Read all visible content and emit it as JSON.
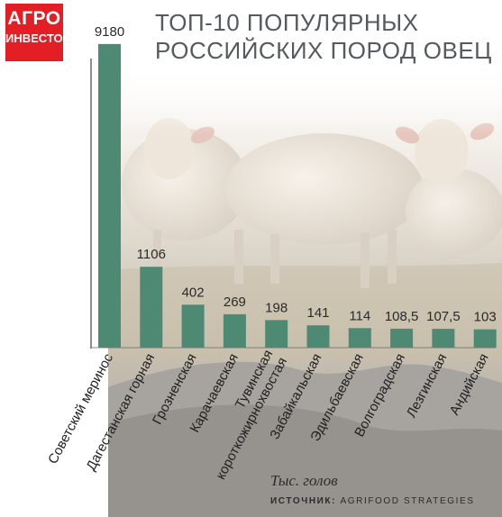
{
  "logo": {
    "line1": "АГРО",
    "line2": "ИНВЕСТОР"
  },
  "chart_data": {
    "type": "bar",
    "title": "ТОП-10 ПОПУЛЯРНЫХ РОССИЙСКИХ ПОРОД ОВЕЦ",
    "title_lines": [
      "ТОП-10 ПОПУЛЯРНЫХ",
      "РОССИЙСКИХ ПОРОД ОВЕЦ"
    ],
    "unit": "Тыс. голов",
    "categories": [
      "Советский меринос",
      "Дагестанская горная",
      "Грозненская",
      "Карачаевская",
      "Тувинская короткожирнохвостая",
      "Забайкальская",
      "Эдильбаевская",
      "Волгоградская",
      "Лезгинская",
      "Андийская"
    ],
    "category_lines": [
      [
        "Советский меринос"
      ],
      [
        "Дагестанская горная"
      ],
      [
        "Грозненская"
      ],
      [
        "Карачаевская"
      ],
      [
        "Тувинская",
        "короткожирнохвостая"
      ],
      [
        "Забайкальская"
      ],
      [
        "Эдильбаевская"
      ],
      [
        "Волгоградская"
      ],
      [
        "Лезгинская"
      ],
      [
        "Андийская"
      ]
    ],
    "values": [
      9180,
      1106,
      402,
      269,
      198,
      141,
      114,
      108.5,
      107.5,
      103
    ],
    "labels": [
      "9180",
      "1106",
      "402",
      "269",
      "198",
      "141",
      "114",
      "108,5",
      "107,5",
      "103"
    ],
    "bar_color": "#4e8a73",
    "scale": "nonlinear (first bars visually compressed)",
    "grid": false,
    "legend": "none"
  },
  "source": {
    "label": "ИСТОЧНИК:",
    "text": "AGRIFOOD STRATEGIES"
  }
}
